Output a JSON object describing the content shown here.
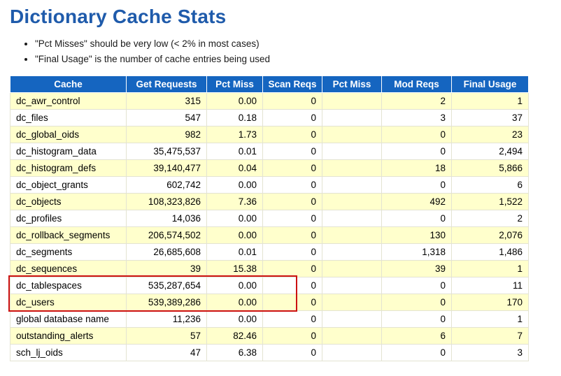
{
  "page": {
    "title": "Dictionary Cache Stats",
    "notes": [
      "\"Pct Misses\" should be very low (< 2% in most cases)",
      "\"Final Usage\" is the number of cache entries being used"
    ]
  },
  "colors": {
    "header_bg": "#1565c0",
    "alt_row_bg": "#ffffcc",
    "title_color": "#1f5bab",
    "highlight_border": "#cc1111"
  },
  "chart_data": {
    "type": "table",
    "title": "Dictionary Cache Stats",
    "headers": [
      "Cache",
      "Get Requests",
      "Pct Miss",
      "Scan Reqs",
      "Pct Miss",
      "Mod Reqs",
      "Final Usage"
    ],
    "rows": [
      [
        "dc_awr_control",
        "315",
        "0.00",
        "0",
        "",
        "2",
        "1"
      ],
      [
        "dc_files",
        "547",
        "0.18",
        "0",
        "",
        "3",
        "37"
      ],
      [
        "dc_global_oids",
        "982",
        "1.73",
        "0",
        "",
        "0",
        "23"
      ],
      [
        "dc_histogram_data",
        "35,475,537",
        "0.01",
        "0",
        "",
        "0",
        "2,494"
      ],
      [
        "dc_histogram_defs",
        "39,140,477",
        "0.04",
        "0",
        "",
        "18",
        "5,866"
      ],
      [
        "dc_object_grants",
        "602,742",
        "0.00",
        "0",
        "",
        "0",
        "6"
      ],
      [
        "dc_objects",
        "108,323,826",
        "7.36",
        "0",
        "",
        "492",
        "1,522"
      ],
      [
        "dc_profiles",
        "14,036",
        "0.00",
        "0",
        "",
        "0",
        "2"
      ],
      [
        "dc_rollback_segments",
        "206,574,502",
        "0.00",
        "0",
        "",
        "130",
        "2,076"
      ],
      [
        "dc_segments",
        "26,685,608",
        "0.01",
        "0",
        "",
        "1,318",
        "1,486"
      ],
      [
        "dc_sequences",
        "39",
        "15.38",
        "0",
        "",
        "39",
        "1"
      ],
      [
        "dc_tablespaces",
        "535,287,654",
        "0.00",
        "0",
        "",
        "0",
        "11"
      ],
      [
        "dc_users",
        "539,389,286",
        "0.00",
        "0",
        "",
        "0",
        "170"
      ],
      [
        "global database name",
        "11,236",
        "0.00",
        "0",
        "",
        "0",
        "1"
      ],
      [
        "outstanding_alerts",
        "57",
        "82.46",
        "0",
        "",
        "6",
        "7"
      ],
      [
        "sch_lj_oids",
        "47",
        "6.38",
        "0",
        "",
        "0",
        "3"
      ]
    ],
    "highlighted_rows": [
      "dc_tablespaces",
      "dc_users"
    ]
  }
}
